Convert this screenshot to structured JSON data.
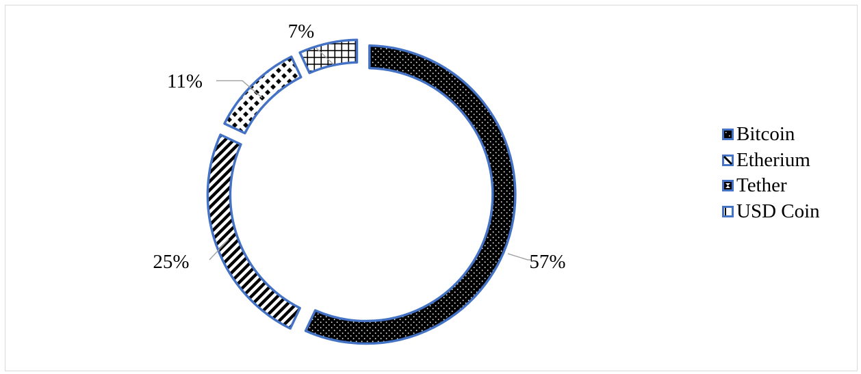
{
  "chart_data": {
    "type": "pie",
    "variant": "doughnut",
    "categories": [
      "Bitcoin",
      "Etherium",
      "Tether",
      "USD Coin"
    ],
    "values": [
      57,
      25,
      11,
      7
    ],
    "data_labels": [
      "57%",
      "25%",
      "11%",
      "7%"
    ],
    "legend_position": "right",
    "series_colors": {
      "fill": "#000000",
      "outline": "#4472C4",
      "background": "#ffffff"
    },
    "patterns": [
      "dotted",
      "diagonal-stripes",
      "checkerboard-diamond",
      "grid"
    ]
  },
  "legend": {
    "items": [
      {
        "label": "Bitcoin",
        "icon": "dotted-pattern-swatch"
      },
      {
        "label": "Etherium",
        "icon": "diagonal-stripe-swatch"
      },
      {
        "label": "Tether",
        "icon": "checker-pattern-swatch"
      },
      {
        "label": "USD Coin",
        "icon": "grid-pattern-swatch"
      }
    ]
  }
}
